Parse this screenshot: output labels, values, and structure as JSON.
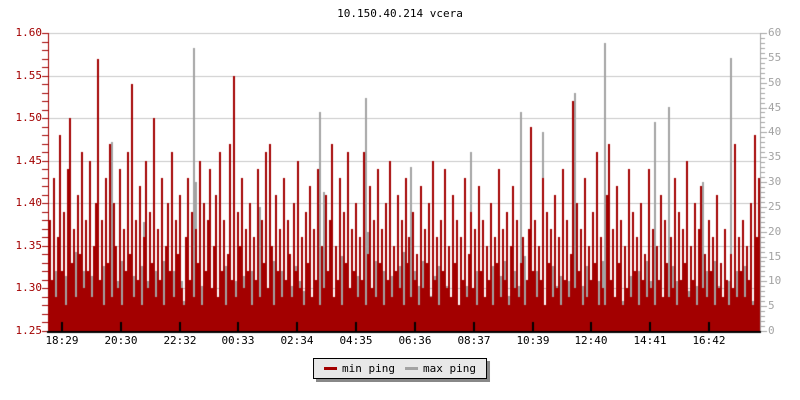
{
  "chart_data": {
    "type": "bar",
    "title": "10.150.40.214 vcera",
    "background": "#ffffff",
    "grid_color": "#c9c9c9",
    "bottom_axis_color": "#000000",
    "legend_box_color": "#e8e8e8",
    "x_tick_labels": [
      "18:29",
      "20:30",
      "22:32",
      "00:33",
      "02:34",
      "04:35",
      "06:36",
      "08:37",
      "10:39",
      "12:40",
      "14:41",
      "16:42"
    ],
    "left_axis": {
      "min": 1.25,
      "max": 1.6,
      "label_color": "#a30000",
      "tick_labels": [
        "1.60",
        "1.55",
        "1.50",
        "1.45",
        "1.40",
        "1.35",
        "1.30",
        "1.25"
      ]
    },
    "right_axis": {
      "min": 0,
      "max": 60,
      "label_color": "#a3a3a3",
      "tick_labels": [
        "60",
        "55",
        "50",
        "45",
        "40",
        "35",
        "30",
        "25",
        "20",
        "15",
        "10",
        "5",
        "0"
      ]
    },
    "series": [
      {
        "name": "min ping",
        "axis": "left",
        "color": "#a30000",
        "scale": 0.01,
        "values": [
          138,
          131,
          143,
          129,
          136,
          148,
          132,
          139,
          128,
          144,
          150,
          133,
          137,
          129,
          141,
          134,
          146,
          130,
          138,
          132,
          145,
          129,
          135,
          140,
          157,
          131,
          138,
          128,
          143,
          133,
          147,
          129,
          140,
          135,
          130,
          144,
          128,
          137,
          132,
          146,
          134,
          154,
          129,
          138,
          131,
          142,
          128,
          136,
          145,
          130,
          139,
          133,
          150,
          129,
          137,
          131,
          143,
          128,
          135,
          140,
          132,
          146,
          129,
          138,
          134,
          141,
          130,
          128,
          136,
          143,
          131,
          139,
          129,
          137,
          133,
          145,
          128,
          140,
          132,
          138,
          144,
          130,
          135,
          141,
          129,
          146,
          132,
          138,
          128,
          134,
          147,
          131,
          155,
          129,
          139,
          135,
          143,
          130,
          137,
          132,
          140,
          128,
          136,
          131,
          144,
          129,
          138,
          133,
          146,
          130,
          147,
          135,
          128,
          141,
          132,
          137,
          129,
          143,
          131,
          138,
          134,
          129,
          140,
          132,
          145,
          130,
          136,
          128,
          139,
          133,
          142,
          129,
          137,
          131,
          144,
          128,
          135,
          130,
          141,
          132,
          138,
          147,
          129,
          135,
          131,
          143,
          128,
          139,
          133,
          146,
          130,
          137,
          132,
          140,
          129,
          136,
          131,
          146,
          128,
          134,
          142,
          130,
          138,
          129,
          144,
          133,
          137,
          128,
          140,
          131,
          145,
          129,
          135,
          132,
          141,
          130,
          138,
          128,
          143,
          133,
          136,
          129,
          139,
          131,
          134,
          128,
          142,
          130,
          137,
          133,
          140,
          129,
          145,
          131,
          136,
          128,
          138,
          132,
          144,
          130,
          135,
          129,
          141,
          133,
          138,
          128,
          136,
          131,
          143,
          129,
          134,
          139,
          130,
          137,
          128,
          142,
          132,
          138,
          129,
          135,
          131,
          140,
          128,
          136,
          133,
          144,
          129,
          137,
          131,
          139,
          128,
          135,
          142,
          130,
          138,
          129,
          133,
          136,
          128,
          131,
          137,
          149,
          132,
          138,
          129,
          135,
          131,
          143,
          128,
          139,
          133,
          137,
          129,
          141,
          130,
          136,
          128,
          144,
          131,
          138,
          129,
          134,
          152,
          130,
          140,
          132,
          137,
          128,
          143,
          129,
          135,
          131,
          139,
          133,
          146,
          128,
          136,
          130,
          128,
          141,
          147,
          131,
          137,
          129,
          142,
          133,
          138,
          128,
          135,
          130,
          144,
          129,
          139,
          132,
          136,
          128,
          140,
          131,
          134,
          129,
          144,
          130,
          137,
          128,
          135,
          131,
          141,
          129,
          138,
          133,
          129,
          136,
          130,
          143,
          128,
          139,
          131,
          137,
          133,
          145,
          129,
          135,
          131,
          140,
          128,
          137,
          142,
          130,
          134,
          129,
          138,
          132,
          136,
          128,
          141,
          130,
          133,
          129,
          137,
          131,
          128,
          134,
          130,
          147,
          129,
          136,
          132,
          138,
          129,
          135,
          131,
          140,
          128,
          148,
          136,
          143
        ]
      },
      {
        "name": "max ping",
        "axis": "right",
        "color": "#a3a3a3",
        "scale": 1,
        "values": [
          6,
          10,
          4,
          12,
          7,
          3,
          9,
          14,
          11,
          5,
          3,
          8,
          6,
          16,
          4,
          9,
          3,
          12,
          7,
          10,
          4,
          11,
          6,
          3,
          5,
          9,
          4,
          13,
          3,
          8,
          4,
          38,
          6,
          3,
          10,
          4,
          14,
          5,
          9,
          3,
          7,
          3,
          11,
          5,
          9,
          4,
          13,
          22,
          3,
          10,
          5,
          8,
          3,
          12,
          4,
          9,
          6,
          14,
          8,
          4,
          9,
          3,
          12,
          5,
          7,
          4,
          10,
          6,
          11,
          3,
          5,
          8,
          57,
          30,
          8,
          3,
          9,
          6,
          12,
          4,
          10,
          4,
          7,
          12,
          5,
          3,
          9,
          6,
          13,
          4,
          8,
          3,
          5,
          10,
          4,
          7,
          3,
          11,
          6,
          9,
          3,
          12,
          6,
          9,
          4,
          25,
          7,
          3,
          11,
          5,
          3,
          8,
          14,
          4,
          10,
          6,
          12,
          3,
          7,
          18,
          5,
          9,
          3,
          13,
          6,
          10,
          4,
          8,
          12,
          3,
          7,
          5,
          11,
          4,
          3,
          44,
          9,
          28,
          5,
          8,
          12,
          3,
          6,
          9,
          4,
          7,
          15,
          5,
          10,
          3,
          8,
          13,
          4,
          6,
          11,
          3,
          9,
          5,
          47,
          20,
          6,
          3,
          10,
          14,
          4,
          8,
          5,
          12,
          3,
          9,
          6,
          11,
          3,
          7,
          4,
          13,
          8,
          16,
          3,
          10,
          5,
          33,
          8,
          12,
          4,
          9,
          3,
          14,
          6,
          10,
          4,
          7,
          3,
          11,
          5,
          13,
          8,
          4,
          6,
          9,
          12,
          5,
          3,
          8,
          10,
          4,
          14,
          6,
          3,
          9,
          5,
          36,
          7,
          3,
          12,
          4,
          8,
          10,
          6,
          3,
          9,
          4,
          13,
          5,
          8,
          3,
          11,
          6,
          14,
          4,
          7,
          10,
          3,
          12,
          5,
          9,
          44,
          8,
          15,
          6,
          4,
          3,
          9,
          6,
          12,
          5,
          8,
          40,
          5,
          10,
          3,
          7,
          13,
          4,
          9,
          5,
          11,
          3,
          8,
          14,
          10,
          6,
          3,
          48,
          7,
          12,
          4,
          9,
          5,
          13,
          3,
          8,
          11,
          4,
          6,
          10,
          3,
          14,
          58,
          9,
          4,
          8,
          12,
          3,
          9,
          5,
          13,
          6,
          10,
          3,
          7,
          11,
          4,
          8,
          5,
          12,
          3,
          9,
          6,
          14,
          3,
          10,
          5,
          42,
          8,
          4,
          12,
          6,
          3,
          9,
          45,
          7,
          13,
          4,
          10,
          3,
          8,
          5,
          11,
          4,
          8,
          13,
          3,
          6,
          9,
          4,
          10,
          30,
          5,
          12,
          3,
          8,
          6,
          14,
          4,
          9,
          11,
          3,
          7,
          5,
          10,
          55,
          6,
          3,
          12,
          5,
          9,
          4,
          13,
          8,
          3,
          10,
          6,
          4,
          9,
          12
        ]
      }
    ]
  }
}
